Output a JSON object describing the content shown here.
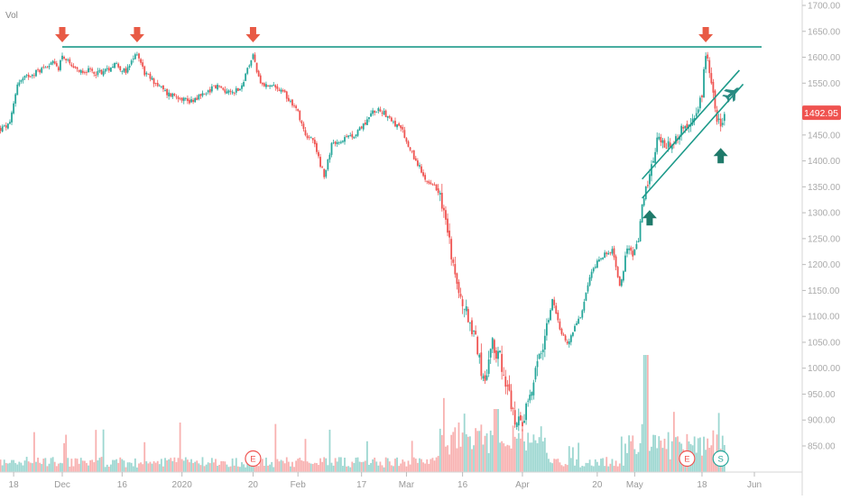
{
  "chart_data": {
    "type": "candlestick",
    "volume_label": "Vol",
    "last_price": "1492.95",
    "ylim": [
      815,
      1705
    ],
    "y_ticks": [
      1700,
      1650,
      1600,
      1550,
      1500,
      1450,
      1400,
      1350,
      1300,
      1250,
      1200,
      1150,
      1100,
      1050,
      1000,
      950,
      900,
      850
    ],
    "y_tick_labels": [
      "1700.00",
      "1650.00",
      "1600.00",
      "1550.00",
      "1500.00",
      "1450.00",
      "1400.00",
      "1350.00",
      "1300.00",
      "1250.00",
      "1200.00",
      "1150.00",
      "1100.00",
      "1050.00",
      "1000.00",
      "950.00",
      "900.00",
      "850.00"
    ],
    "x_tick_labels": [
      "18",
      "Dec",
      "16",
      "2020",
      "20",
      "Feb",
      "17",
      "Mar",
      "16",
      "Apr",
      "20",
      "May",
      "18",
      "Jun"
    ],
    "x_ticks_day": [
      -13,
      0,
      16,
      32,
      51,
      63,
      80,
      92,
      107,
      123,
      143,
      153,
      171,
      185
    ],
    "xlim_day": [
      -17,
      192
    ],
    "price_path": [
      [
        -17,
        1460
      ],
      [
        -14,
        1470
      ],
      [
        -12,
        1550
      ],
      [
        -9,
        1565
      ],
      [
        -6,
        1575
      ],
      [
        -3,
        1590
      ],
      [
        -1,
        1580
      ],
      [
        0,
        1605
      ],
      [
        3,
        1575
      ],
      [
        6,
        1575
      ],
      [
        9,
        1570
      ],
      [
        12,
        1575
      ],
      [
        14,
        1590
      ],
      [
        17,
        1570
      ],
      [
        20,
        1610
      ],
      [
        22,
        1570
      ],
      [
        25,
        1550
      ],
      [
        28,
        1530
      ],
      [
        31,
        1525
      ],
      [
        34,
        1515
      ],
      [
        38,
        1530
      ],
      [
        41,
        1545
      ],
      [
        45,
        1530
      ],
      [
        48,
        1545
      ],
      [
        51,
        1605
      ],
      [
        53,
        1545
      ],
      [
        56,
        1545
      ],
      [
        60,
        1525
      ],
      [
        63,
        1495
      ],
      [
        65,
        1450
      ],
      [
        67,
        1440
      ],
      [
        70,
        1370
      ],
      [
        72,
        1430
      ],
      [
        75,
        1440
      ],
      [
        77,
        1445
      ],
      [
        80,
        1465
      ],
      [
        83,
        1495
      ],
      [
        85,
        1500
      ],
      [
        88,
        1480
      ],
      [
        91,
        1455
      ],
      [
        93,
        1420
      ],
      [
        95,
        1395
      ],
      [
        97,
        1360
      ],
      [
        99,
        1350
      ],
      [
        101,
        1340
      ],
      [
        102,
        1300
      ],
      [
        103,
        1260
      ],
      [
        105,
        1180
      ],
      [
        107,
        1130
      ],
      [
        109,
        1090
      ],
      [
        111,
        1040
      ],
      [
        113,
        960
      ],
      [
        115,
        1045
      ],
      [
        117,
        1020
      ],
      [
        119,
        960
      ],
      [
        121,
        890
      ],
      [
        123,
        900
      ],
      [
        125,
        950
      ],
      [
        127,
        1000
      ],
      [
        129,
        1060
      ],
      [
        131,
        1130
      ],
      [
        133,
        1080
      ],
      [
        135,
        1045
      ],
      [
        137,
        1080
      ],
      [
        139,
        1110
      ],
      [
        141,
        1175
      ],
      [
        143,
        1210
      ],
      [
        145,
        1220
      ],
      [
        147,
        1225
      ],
      [
        149,
        1160
      ],
      [
        151,
        1225
      ],
      [
        153,
        1220
      ],
      [
        154,
        1240
      ],
      [
        155,
        1310
      ],
      [
        157,
        1375
      ],
      [
        159,
        1440
      ],
      [
        161,
        1430
      ],
      [
        163,
        1435
      ],
      [
        165,
        1455
      ],
      [
        167,
        1470
      ],
      [
        169,
        1490
      ],
      [
        171,
        1525
      ],
      [
        172,
        1610
      ],
      [
        173,
        1570
      ],
      [
        174,
        1530
      ],
      [
        175,
        1480
      ],
      [
        176,
        1470
      ],
      [
        177,
        1495
      ]
    ],
    "resistance_line": {
      "price": 1620,
      "from_day": 0,
      "to_day": 185
    },
    "channel_lines": [
      {
        "from": [
          155,
          1365
        ],
        "to": [
          181,
          1575
        ]
      },
      {
        "from": [
          155,
          1328
        ],
        "to": [
          182,
          1548
        ]
      }
    ],
    "down_arrow_days": [
      0,
      20,
      51,
      172
    ],
    "up_arrow_points": [
      [
        157,
        1305
      ],
      [
        176,
        1425
      ]
    ],
    "plane_marker": [
      179,
      1530
    ],
    "event_markers": [
      {
        "label": "E",
        "day": 51
      },
      {
        "label": "E",
        "day": 167
      },
      {
        "label": "S",
        "day": 176
      }
    ],
    "colors": {
      "up": "#26a69a",
      "down": "#ef5350",
      "trend_line": "#1d9a8a",
      "arrow_down": "#e85a45",
      "arrow_up": "#1f7a6a",
      "price_label_bg": "#ef5350",
      "event_marker": "#ef5350",
      "split_marker": "#26a69a"
    }
  }
}
